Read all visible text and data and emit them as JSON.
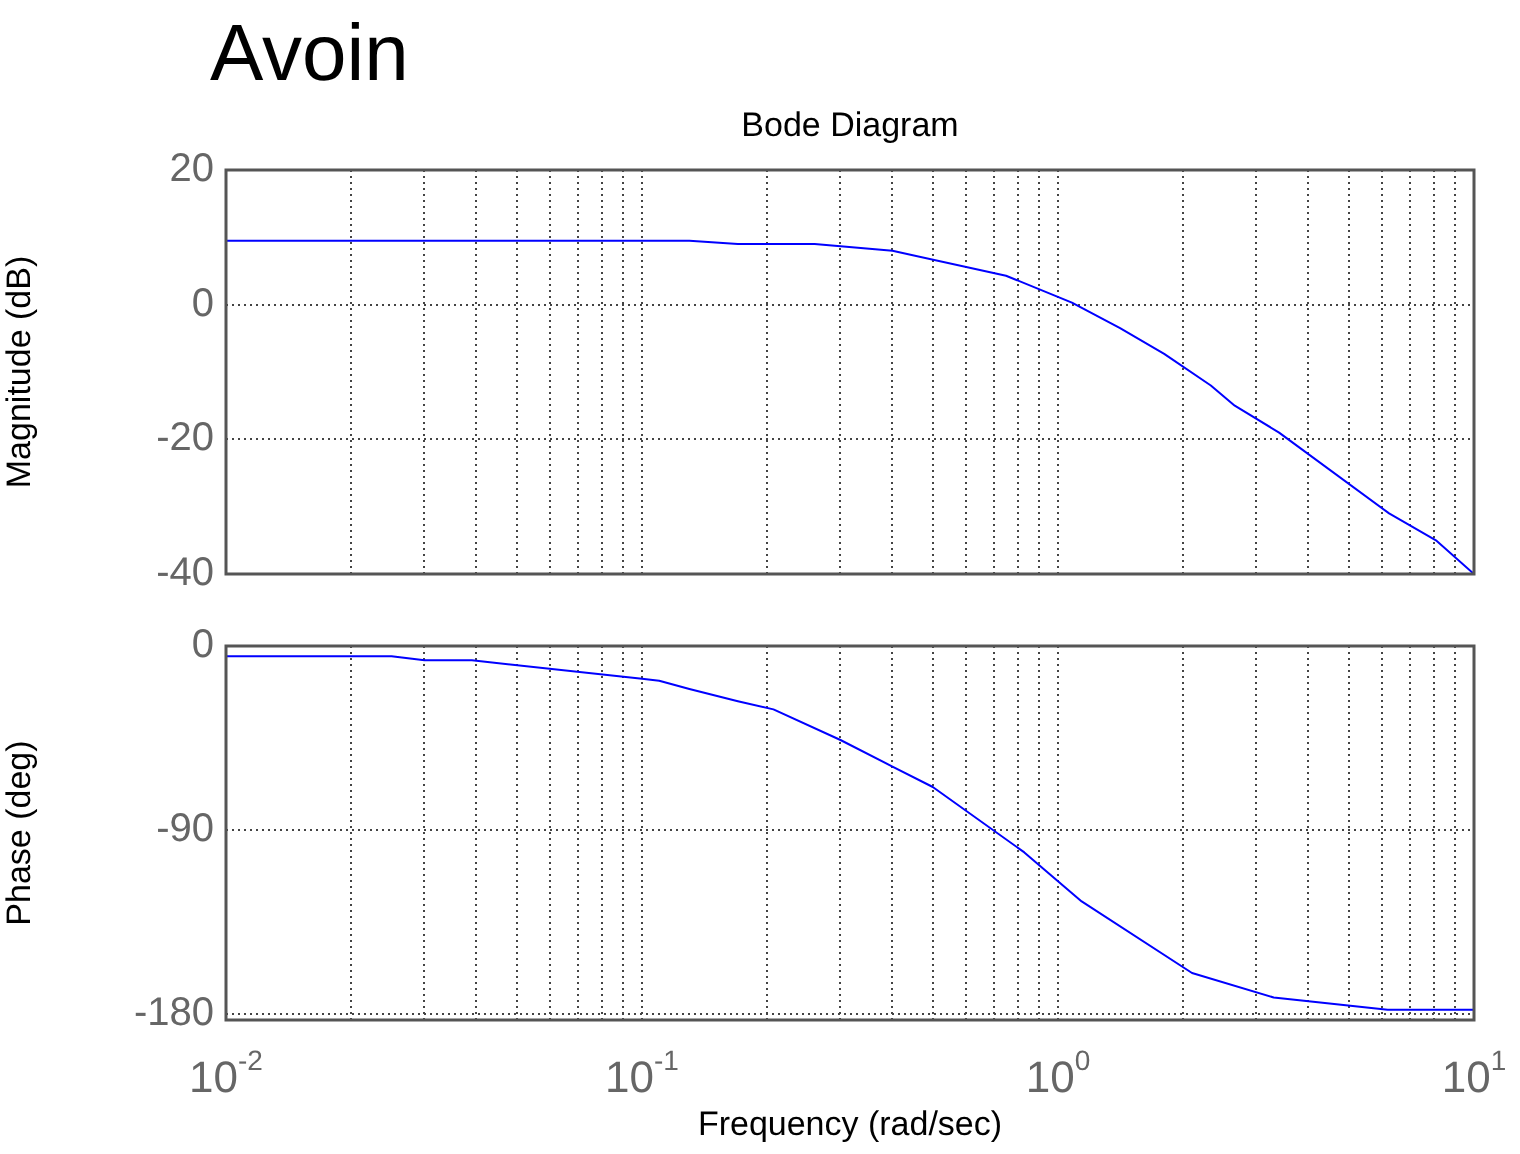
{
  "chart_data": [
    {
      "type": "line",
      "title": "Avoin",
      "subtitle": "Bode Diagram",
      "ylabel": "Magnitude (dB)",
      "log": "x",
      "grid": true,
      "tick_labels": "y",
      "legend": false,
      "xlim": [
        0.01,
        10
      ],
      "xticks": [
        {
          "value": 0.01,
          "label": null
        },
        {
          "value": 0.02,
          "label": null
        },
        {
          "value": 0.03,
          "label": null
        },
        {
          "value": 0.04,
          "label": null
        },
        {
          "value": 0.05,
          "label": null
        },
        {
          "value": 0.06,
          "label": null
        },
        {
          "value": 0.07,
          "label": null
        },
        {
          "value": 0.08,
          "label": null
        },
        {
          "value": 0.09,
          "label": null
        },
        {
          "value": 0.1,
          "label": null
        },
        {
          "value": 0.2,
          "label": null
        },
        {
          "value": 0.3,
          "label": null
        },
        {
          "value": 0.4,
          "label": null
        },
        {
          "value": 0.5,
          "label": null
        },
        {
          "value": 0.6,
          "label": null
        },
        {
          "value": 0.7,
          "label": null
        },
        {
          "value": 0.8,
          "label": null
        },
        {
          "value": 0.9,
          "label": null
        },
        {
          "value": 1,
          "label": null
        },
        {
          "value": 2,
          "label": null
        },
        {
          "value": 3,
          "label": null
        },
        {
          "value": 4,
          "label": null
        },
        {
          "value": 5,
          "label": null
        },
        {
          "value": 6,
          "label": null
        },
        {
          "value": 7,
          "label": null
        },
        {
          "value": 8,
          "label": null
        },
        {
          "value": 9,
          "label": null
        },
        {
          "value": 10,
          "label": null
        }
      ],
      "ylim": [
        -40,
        20
      ],
      "yticks": [
        -40,
        -20,
        0,
        20
      ],
      "marker": "none",
      "series": [
        {
          "color": "#0000ff",
          "x": [
            0.01,
            0.13,
            0.17,
            0.26,
            0.4,
            0.75,
            1.08,
            1.41,
            1.8,
            2.33,
            2.66,
            3.4,
            6.25,
            8.1,
            10
          ],
          "values": [
            9.5,
            9.5,
            9,
            9,
            8,
            4.3,
            0.3,
            -3.5,
            -7.3,
            -12,
            -15,
            -19,
            -31,
            -35,
            -40
          ]
        }
      ]
    },
    {
      "type": "line",
      "ylabel": "Phase (deg)",
      "xlabel": "Frequency (rad/sec)",
      "log": "x",
      "grid": true,
      "legend": false,
      "xlim": [
        0.01,
        10
      ],
      "xticks": [
        {
          "value": 0.01,
          "label": "10$^{-2}$"
        },
        {
          "value": 0.02,
          "label": null
        },
        {
          "value": 0.03,
          "label": null
        },
        {
          "value": 0.04,
          "label": null
        },
        {
          "value": 0.05,
          "label": null
        },
        {
          "value": 0.06,
          "label": null
        },
        {
          "value": 0.07,
          "label": null
        },
        {
          "value": 0.08,
          "label": null
        },
        {
          "value": 0.09,
          "label": null
        },
        {
          "value": 0.1,
          "label": "10$^{-1}$"
        },
        {
          "value": 0.2,
          "label": null
        },
        {
          "value": 0.3,
          "label": null
        },
        {
          "value": 0.4,
          "label": null
        },
        {
          "value": 0.5,
          "label": null
        },
        {
          "value": 0.6,
          "label": null
        },
        {
          "value": 0.7,
          "label": null
        },
        {
          "value": 0.8,
          "label": null
        },
        {
          "value": 0.9,
          "label": null
        },
        {
          "value": 1,
          "label": "10$^{0}$"
        },
        {
          "value": 2,
          "label": null
        },
        {
          "value": 3,
          "label": null
        },
        {
          "value": 4,
          "label": null
        },
        {
          "value": 5,
          "label": null
        },
        {
          "value": 6,
          "label": null
        },
        {
          "value": 7,
          "label": null
        },
        {
          "value": 8,
          "label": null
        },
        {
          "value": 9,
          "label": null
        },
        {
          "value": 10,
          "label": "10$^{1}$"
        }
      ],
      "ylim": [
        -183,
        0
      ],
      "yticks": [
        -180,
        -90,
        0
      ],
      "marker": "none",
      "series": [
        {
          "color": "#0000ff",
          "x": [
            0.01,
            0.025,
            0.03,
            0.039,
            0.1,
            0.11,
            0.13,
            0.17,
            0.207,
            0.3,
            0.4,
            0.5,
            0.83,
            1.14,
            2.1,
            3.3,
            6.2,
            10
          ],
          "values": [
            -5,
            -5,
            -7,
            -7,
            -16,
            -17,
            -21,
            -27,
            -31,
            -46,
            -59,
            -69,
            -101,
            -125,
            -160,
            -172,
            -178,
            -178
          ]
        }
      ]
    }
  ]
}
